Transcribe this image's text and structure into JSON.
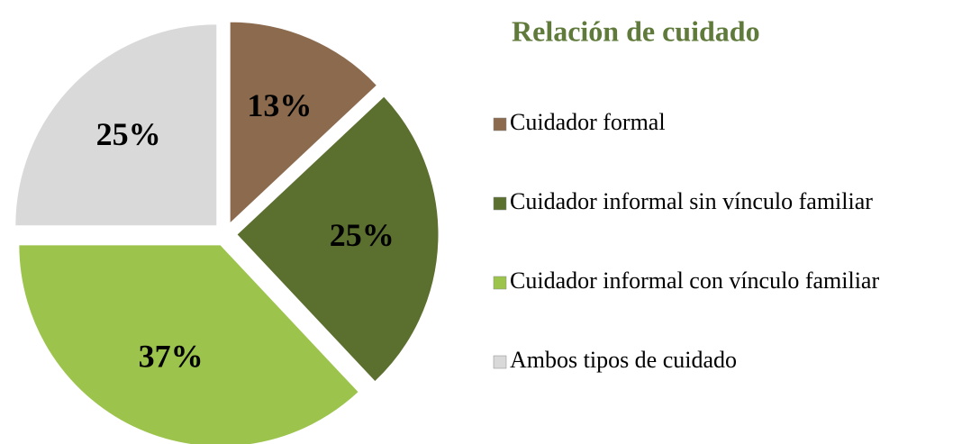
{
  "chart_data": {
    "type": "pie",
    "title": "Relación de cuidado",
    "categories": [
      "Cuidador formal",
      "Cuidador informal sin vínculo familiar",
      "Cuidador informal con vínculo familiar",
      "Ambos tipos de cuidado"
    ],
    "values": [
      13,
      25,
      37,
      25
    ],
    "value_labels": [
      "13%",
      "25%",
      "37%",
      "25%"
    ],
    "colors": [
      "#8b6a4e",
      "#5b6f2f",
      "#9cc44c",
      "#d9d9d9"
    ],
    "legend": "right"
  }
}
